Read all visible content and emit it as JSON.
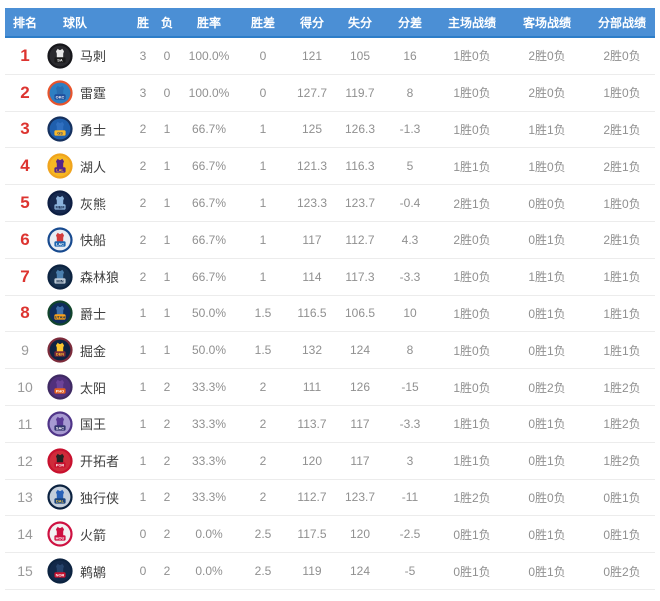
{
  "colors": {
    "header_bg": "#4b8fd5",
    "header_border": "#2d7dc8",
    "rank_top": "#dd3430"
  },
  "table": {
    "columns": [
      "排名",
      "球队",
      "胜",
      "负",
      "胜率",
      "胜差",
      "得分",
      "失分",
      "分差",
      "主场战绩",
      "客场战绩",
      "分部战绩"
    ],
    "rows": [
      {
        "rank": "1",
        "team": "马刺",
        "wins": "3",
        "losses": "0",
        "pct": "100.0%",
        "gb": "0",
        "pf": "121",
        "pa": "105",
        "diff": "16",
        "home": "1胜0负",
        "away": "2胜0负",
        "division": "2胜0负",
        "logo": {
          "abbr": "SA",
          "ring": "#17171b",
          "bg": "#2a2a2e",
          "jersey": "#e9e9e9",
          "labelBg": "#1a1a1a",
          "labelColor": "#ffffff"
        }
      },
      {
        "rank": "2",
        "team": "雷霆",
        "wins": "3",
        "losses": "0",
        "pct": "100.0%",
        "gb": "0",
        "pf": "127.7",
        "pa": "119.7",
        "diff": "8",
        "home": "1胜0负",
        "away": "2胜0负",
        "division": "1胜0负",
        "logo": {
          "abbr": "OKC",
          "ring": "#e8542c",
          "bg": "#2e7fc2",
          "jersey": "#2a6db1",
          "labelBg": "#1f4e9c",
          "labelColor": "#ffffff"
        }
      },
      {
        "rank": "3",
        "team": "勇士",
        "wins": "2",
        "losses": "1",
        "pct": "66.7%",
        "gb": "1",
        "pf": "125",
        "pa": "126.3",
        "diff": "-1.3",
        "home": "1胜0负",
        "away": "1胜1负",
        "division": "2胜1负",
        "logo": {
          "abbr": "GS",
          "ring": "#16315e",
          "bg": "#1f5fae",
          "jersey": "#2f6fc0",
          "labelBg": "#fdb927",
          "labelColor": "#1d428a"
        }
      },
      {
        "rank": "4",
        "team": "湖人",
        "wins": "2",
        "losses": "1",
        "pct": "66.7%",
        "gb": "1",
        "pf": "121.3",
        "pa": "116.3",
        "diff": "5",
        "home": "1胜1负",
        "away": "1胜0负",
        "division": "2胜1负",
        "logo": {
          "abbr": "LAL",
          "ring": "#f0a41e",
          "bg": "#f6b722",
          "jersey": "#55268a",
          "labelBg": "#55268a",
          "labelColor": "#fdc52f"
        }
      },
      {
        "rank": "5",
        "team": "灰熊",
        "wins": "2",
        "losses": "1",
        "pct": "66.7%",
        "gb": "1",
        "pf": "123.3",
        "pa": "123.7",
        "diff": "-0.4",
        "home": "2胜1负",
        "away": "0胜0负",
        "division": "1胜0负",
        "logo": {
          "abbr": "MEM",
          "ring": "#0d1e42",
          "bg": "#16294f",
          "jersey": "#8cb3dd",
          "labelBg": "#8cb3dd",
          "labelColor": "#0d1e42"
        }
      },
      {
        "rank": "6",
        "team": "快船",
        "wins": "2",
        "losses": "1",
        "pct": "66.7%",
        "gb": "1",
        "pf": "117",
        "pa": "112.7",
        "diff": "4.3",
        "home": "2胜0负",
        "away": "0胜1负",
        "division": "2胜1负",
        "logo": {
          "abbr": "LAC",
          "ring": "#174a8f",
          "bg": "#e8edf4",
          "jersey": "#d23c3c",
          "labelBg": "#1f66b0",
          "labelColor": "#ffffff"
        }
      },
      {
        "rank": "7",
        "team": "森林狼",
        "wins": "2",
        "losses": "1",
        "pct": "66.7%",
        "gb": "1",
        "pf": "114",
        "pa": "117.3",
        "diff": "-3.3",
        "home": "1胜0负",
        "away": "1胜1负",
        "division": "1胜1负",
        "logo": {
          "abbr": "MIN",
          "ring": "#0c2340",
          "bg": "#16314f",
          "jersey": "#4a7fae",
          "labelBg": "#b9c7d4",
          "labelColor": "#0c2340"
        }
      },
      {
        "rank": "8",
        "team": "爵士",
        "wins": "1",
        "losses": "1",
        "pct": "50.0%",
        "gb": "1.5",
        "pf": "116.5",
        "pa": "106.5",
        "diff": "10",
        "home": "1胜0负",
        "away": "0胜1负",
        "division": "1胜1负",
        "logo": {
          "abbr": "UTAH",
          "ring": "#12452c",
          "bg": "#0e2d5c",
          "jersey": "#3e6fa8",
          "labelBg": "#f9a01b",
          "labelColor": "#12304f"
        }
      },
      {
        "rank": "9",
        "team": "掘金",
        "wins": "1",
        "losses": "1",
        "pct": "50.0%",
        "gb": "1.5",
        "pf": "132",
        "pa": "124",
        "diff": "8",
        "home": "1胜0负",
        "away": "0胜1负",
        "division": "1胜1负",
        "logo": {
          "abbr": "DEN",
          "ring": "#7c2b3a",
          "bg": "#0f2242",
          "jersey": "#fdc52f",
          "labelBg": "#7c2b3a",
          "labelColor": "#fdc52f"
        }
      },
      {
        "rank": "10",
        "team": "太阳",
        "wins": "1",
        "losses": "2",
        "pct": "33.3%",
        "gb": "2",
        "pf": "111",
        "pa": "126",
        "diff": "-15",
        "home": "1胜0负",
        "away": "0胜2负",
        "division": "1胜2负",
        "logo": {
          "abbr": "PHO",
          "ring": "#3f2a63",
          "bg": "#51307c",
          "jersey": "#6c4399",
          "labelBg": "#e56020",
          "labelColor": "#ffffff"
        }
      },
      {
        "rank": "11",
        "team": "国王",
        "wins": "1",
        "losses": "2",
        "pct": "33.3%",
        "gb": "2",
        "pf": "113.7",
        "pa": "117",
        "diff": "-3.3",
        "home": "1胜1负",
        "away": "0胜1负",
        "division": "1胜2负",
        "logo": {
          "abbr": "SAC",
          "ring": "#4f3488",
          "bg": "#a79ad1",
          "jersey": "#593996",
          "labelBg": "#33356e",
          "labelColor": "#ffffff"
        }
      },
      {
        "rank": "12",
        "team": "开拓者",
        "wins": "1",
        "losses": "2",
        "pct": "33.3%",
        "gb": "2",
        "pf": "120",
        "pa": "117",
        "diff": "3",
        "home": "1胜1负",
        "away": "0胜1负",
        "division": "1胜2负",
        "logo": {
          "abbr": "POR",
          "ring": "#c8102e",
          "bg": "#cf2b3a",
          "jersey": "#222222",
          "labelBg": "#c8102e",
          "labelColor": "#ffffff"
        }
      },
      {
        "rank": "13",
        "team": "独行侠",
        "wins": "1",
        "losses": "2",
        "pct": "33.3%",
        "gb": "2",
        "pf": "112.7",
        "pa": "123.7",
        "diff": "-11",
        "home": "1胜2负",
        "away": "0胜0负",
        "division": "0胜1负",
        "logo": {
          "abbr": "DAL",
          "ring": "#0b2240",
          "bg": "#c4cedb",
          "jersey": "#2a62b8",
          "labelBg": "#1b447e",
          "labelColor": "#ffd24a"
        }
      },
      {
        "rank": "14",
        "team": "火箭",
        "wins": "0",
        "losses": "2",
        "pct": "0.0%",
        "gb": "2.5",
        "pf": "117.5",
        "pa": "120",
        "diff": "-2.5",
        "home": "0胜1负",
        "away": "0胜1负",
        "division": "0胜1负",
        "logo": {
          "abbr": "HOU",
          "ring": "#ce1141",
          "bg": "#f2f2f2",
          "jersey": "#ce1141",
          "labelBg": "#ce1141",
          "labelColor": "#ffffff"
        }
      },
      {
        "rank": "15",
        "team": "鹈鹕",
        "wins": "0",
        "losses": "2",
        "pct": "0.0%",
        "gb": "2.5",
        "pf": "119",
        "pa": "124",
        "diff": "-5",
        "home": "0胜1负",
        "away": "0胜1负",
        "division": "0胜2负",
        "logo": {
          "abbr": "NOR",
          "ring": "#0c2340",
          "bg": "#13294a",
          "jersey": "#26436b",
          "labelBg": "#c8102e",
          "labelColor": "#ffffff"
        }
      }
    ]
  }
}
